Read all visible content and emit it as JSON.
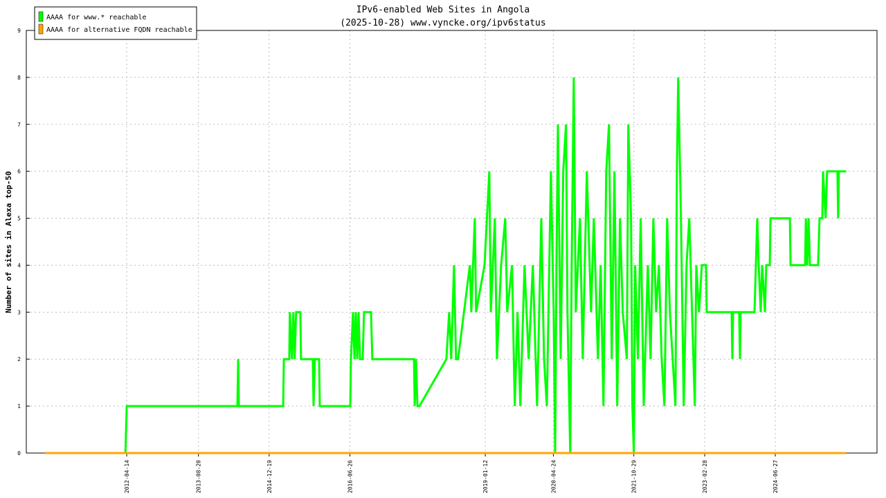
{
  "chart_data": {
    "type": "line",
    "title": "IPv6-enabled Web Sites in Angola",
    "subtitle": "(2025-10-28) www.vyncke.org/ipv6status",
    "y_label": "Number of sites in Alexa top-50",
    "xlim": [
      "2010-05-25",
      "2026-05-27"
    ],
    "xticks": [
      "2012-04-14",
      "2013-08-20",
      "2014-12-19",
      "2016-06-26",
      "2019-01-12",
      "2020-04-24",
      "2021-10-29",
      "2023-02-28",
      "2024-06-27"
    ],
    "ylim": [
      0,
      9
    ],
    "yticks": [
      0,
      1,
      2,
      3,
      4,
      5,
      6,
      7,
      8,
      9
    ],
    "grid": true,
    "legend": "top-left",
    "series": [
      {
        "name": "AAAA for www.* reachable",
        "color": "#00ff00",
        "x": [
          "2012-04-05",
          "2012-04-14",
          "2014-05-15",
          "2014-05-20",
          "2014-05-25",
          "2015-03-25",
          "2015-03-30",
          "2015-05-06",
          "2015-05-10",
          "2015-05-24",
          "2015-06-03",
          "2015-06-12",
          "2015-06-22",
          "2015-07-21",
          "2015-07-26",
          "2015-10-15",
          "2015-10-20",
          "2015-10-29",
          "2015-11-27",
          "2015-12-02",
          "2016-06-28",
          "2016-07-03",
          "2016-07-17",
          "2016-07-27",
          "2016-08-05",
          "2016-08-15",
          "2016-08-24",
          "2016-09-03",
          "2016-09-22",
          "2016-10-01",
          "2016-11-18",
          "2016-11-27",
          "2017-09-09",
          "2017-09-14",
          "2017-09-23",
          "2017-10-03",
          "2017-10-17",
          "2018-04-20",
          "2018-05-09",
          "2018-05-23",
          "2018-06-11",
          "2018-06-25",
          "2018-07-09",
          "2018-09-28",
          "2018-10-08",
          "2018-11-01",
          "2018-11-10",
          "2019-01-07",
          "2019-02-09",
          "2019-02-19",
          "2019-03-19",
          "2019-04-02",
          "2019-05-01",
          "2019-05-29",
          "2019-06-12",
          "2019-07-15",
          "2019-08-03",
          "2019-08-22",
          "2019-09-10",
          "2019-10-09",
          "2019-11-06",
          "2019-12-05",
          "2020-01-03",
          "2020-02-01",
          "2020-02-20",
          "2020-03-10",
          "2020-04-07",
          "2020-04-26",
          "2020-05-06",
          "2020-05-15",
          "2020-05-25",
          "2020-06-13",
          "2020-07-01",
          "2020-07-20",
          "2020-07-30",
          "2020-08-18",
          "2020-08-28",
          "2020-09-11",
          "2020-09-25",
          "2020-10-24",
          "2020-11-12",
          "2020-12-10",
          "2021-01-08",
          "2021-01-27",
          "2021-02-24",
          "2021-03-15",
          "2021-04-03",
          "2021-04-22",
          "2021-05-11",
          "2021-05-30",
          "2021-06-18",
          "2021-07-07",
          "2021-07-26",
          "2021-08-14",
          "2021-09-11",
          "2021-09-21",
          "2021-10-10",
          "2021-10-19",
          "2021-10-29",
          "2021-11-07",
          "2021-11-26",
          "2021-12-15",
          "2022-01-05",
          "2022-02-02",
          "2022-02-21",
          "2022-03-12",
          "2022-03-31",
          "2022-04-19",
          "2022-05-08",
          "2022-05-27",
          "2022-06-15",
          "2022-07-04",
          "2022-07-23",
          "2022-08-11",
          "2022-08-21",
          "2022-08-30",
          "2022-09-18",
          "2022-10-07",
          "2022-10-26",
          "2022-11-14",
          "2022-12-03",
          "2022-12-22",
          "2023-01-01",
          "2023-01-20",
          "2023-02-08",
          "2023-03-09",
          "2023-03-14",
          "2023-09-01",
          "2023-09-06",
          "2023-09-11",
          "2023-10-23",
          "2023-10-28",
          "2023-11-02",
          "2024-02-05",
          "2024-02-24",
          "2024-03-05",
          "2024-03-19",
          "2024-03-29",
          "2024-04-17",
          "2024-04-26",
          "2024-05-20",
          "2024-05-25",
          "2024-10-05",
          "2024-10-10",
          "2025-01-18",
          "2025-01-23",
          "2025-02-01",
          "2025-02-11",
          "2025-02-20",
          "2025-04-17",
          "2025-04-27",
          "2025-05-16",
          "2025-05-21",
          "2025-06-08",
          "2025-06-18",
          "2025-08-28",
          "2025-09-02",
          "2025-09-07",
          "2025-10-28"
        ],
        "values": [
          0,
          1,
          1,
          2,
          1,
          1,
          2,
          2,
          3,
          2,
          3,
          2,
          3,
          3,
          2,
          2,
          1,
          2,
          2,
          1,
          1,
          2,
          3,
          2,
          3,
          2,
          3,
          2,
          2,
          3,
          3,
          2,
          2,
          1,
          2,
          1,
          1,
          2,
          3,
          2,
          4,
          2,
          2,
          4,
          3,
          5,
          3,
          4,
          6,
          3,
          5,
          2,
          4,
          5,
          3,
          4,
          1,
          3,
          1,
          4,
          2,
          4,
          1,
          5,
          2,
          1,
          6,
          3,
          0,
          4,
          7,
          2,
          6,
          7,
          3,
          0,
          4,
          8,
          3,
          5,
          2,
          6,
          3,
          5,
          2,
          4,
          1,
          6,
          7,
          2,
          6,
          1,
          5,
          3,
          2,
          7,
          5,
          1,
          0,
          4,
          2,
          5,
          1,
          4,
          2,
          5,
          3,
          4,
          2,
          1,
          5,
          3,
          2,
          1,
          6,
          8,
          5,
          1,
          4,
          5,
          3,
          1,
          4,
          3,
          4,
          4,
          3,
          3,
          2,
          3,
          3,
          2,
          3,
          3,
          5,
          4,
          3,
          4,
          3,
          4,
          4,
          5,
          5,
          4,
          4,
          5,
          4,
          5,
          4,
          4,
          5,
          5,
          6,
          5,
          6,
          6,
          5,
          6,
          6
        ]
      },
      {
        "name": "AAAA for alternative FQDN reachable",
        "color": "#ffa500",
        "x": [
          "2010-09-30",
          "2025-10-28"
        ],
        "values": [
          0,
          0
        ]
      }
    ]
  }
}
